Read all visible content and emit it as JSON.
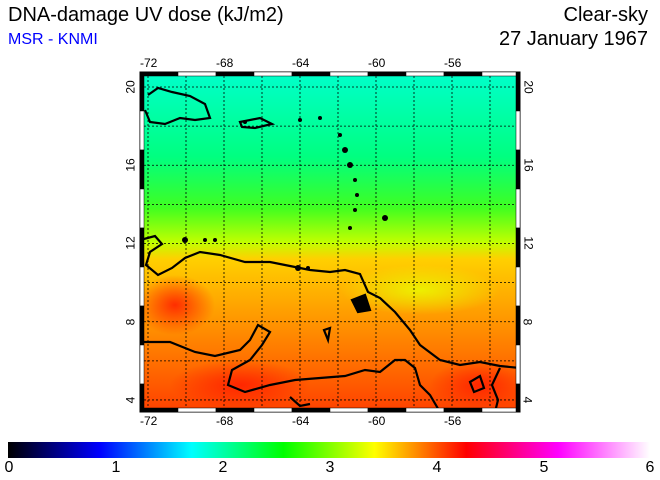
{
  "header": {
    "title": "DNA-damage UV dose (kJ/m2)",
    "source": "MSR - KNMI",
    "sky_condition": "Clear-sky",
    "date": "27 January 1967"
  },
  "map": {
    "lon_ticks": [
      "-72",
      "-68",
      "-64",
      "-60",
      "-56"
    ],
    "lat_ticks": [
      "20",
      "16",
      "12",
      "8",
      "4"
    ]
  },
  "colorbar": {
    "labels": [
      "0",
      "1",
      "2",
      "3",
      "4",
      "5",
      "6"
    ],
    "min": 0,
    "max": 6,
    "colors": [
      "#000000",
      "#0000ff",
      "#00ffff",
      "#00ff00",
      "#ffff00",
      "#ff0000",
      "#ff00ff",
      "#ffffff"
    ]
  }
}
